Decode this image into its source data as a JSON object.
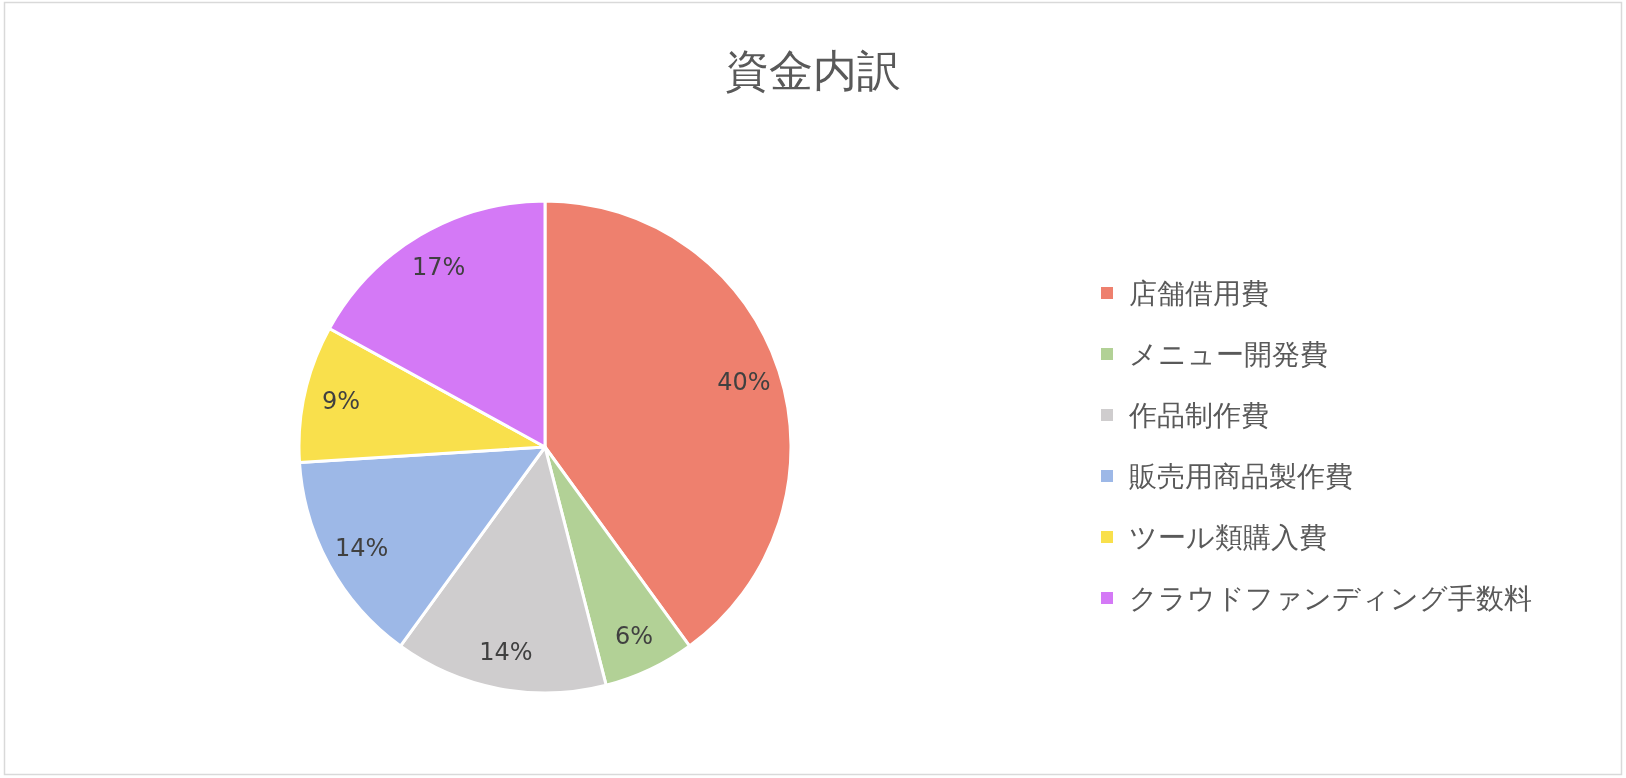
{
  "chart_data": {
    "type": "pie",
    "title": "資金内訳",
    "categories": [
      "店舗借用費",
      "メニュー開発費",
      "作品制作費",
      "販売用商品製作費",
      "ツール類購入費",
      "クラウドファンディング手数料"
    ],
    "values": [
      40,
      6,
      14,
      14,
      9,
      17
    ],
    "colors": [
      "#ee806e",
      "#b2d196",
      "#cfcdce",
      "#9db8e7",
      "#f9e04c",
      "#d479f6"
    ],
    "value_labels": [
      "40%",
      "6%",
      "14%",
      "14%",
      "9%",
      "17%"
    ],
    "legend": "right"
  }
}
